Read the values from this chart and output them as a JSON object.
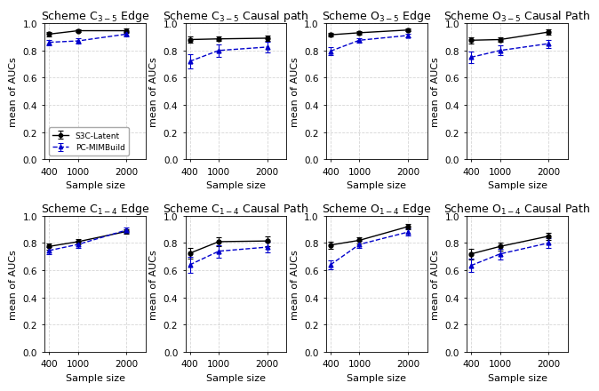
{
  "x": [
    400,
    1000,
    2000
  ],
  "panels": [
    {
      "title": "Scheme C$_{3-5}$ Edge",
      "s3c_mean": [
        0.92,
        0.945,
        0.945
      ],
      "s3c_err": [
        0.015,
        0.01,
        0.015
      ],
      "pc_mean": [
        0.86,
        0.87,
        0.92
      ],
      "pc_err": [
        0.02,
        0.018,
        0.018
      ],
      "show_legend": true
    },
    {
      "title": "Scheme C$_{3-5}$ Causal path",
      "s3c_mean": [
        0.88,
        0.885,
        0.89
      ],
      "s3c_err": [
        0.022,
        0.015,
        0.018
      ],
      "pc_mean": [
        0.72,
        0.8,
        0.825
      ],
      "pc_err": [
        0.055,
        0.045,
        0.038
      ],
      "show_legend": false
    },
    {
      "title": "Scheme O$_{3-5}$ Edge",
      "s3c_mean": [
        0.915,
        0.93,
        0.95
      ],
      "s3c_err": [
        0.015,
        0.012,
        0.01
      ],
      "pc_mean": [
        0.795,
        0.875,
        0.91
      ],
      "pc_err": [
        0.03,
        0.018,
        0.015
      ],
      "show_legend": false
    },
    {
      "title": "Scheme O$_{3-5}$ Causal Path",
      "s3c_mean": [
        0.875,
        0.88,
        0.935
      ],
      "s3c_err": [
        0.022,
        0.015,
        0.018
      ],
      "pc_mean": [
        0.75,
        0.8,
        0.85
      ],
      "pc_err": [
        0.04,
        0.035,
        0.03
      ],
      "show_legend": false
    },
    {
      "title": "Scheme C$_{1-4}$ Edge",
      "s3c_mean": [
        0.775,
        0.81,
        0.885
      ],
      "s3c_err": [
        0.022,
        0.02,
        0.018
      ],
      "pc_mean": [
        0.745,
        0.79,
        0.895
      ],
      "pc_err": [
        0.028,
        0.025,
        0.022
      ],
      "show_legend": false
    },
    {
      "title": "Scheme C$_{1-4}$ Causal Path",
      "s3c_mean": [
        0.725,
        0.81,
        0.815
      ],
      "s3c_err": [
        0.04,
        0.03,
        0.035
      ],
      "pc_mean": [
        0.64,
        0.74,
        0.77
      ],
      "pc_err": [
        0.06,
        0.045,
        0.04
      ],
      "show_legend": false
    },
    {
      "title": "Scheme O$_{1-4}$ Edge",
      "s3c_mean": [
        0.785,
        0.82,
        0.92
      ],
      "s3c_err": [
        0.025,
        0.022,
        0.018
      ],
      "pc_mean": [
        0.64,
        0.79,
        0.88
      ],
      "pc_err": [
        0.035,
        0.028,
        0.025
      ],
      "show_legend": false
    },
    {
      "title": "Scheme O$_{1-4}$ Causal Path",
      "s3c_mean": [
        0.72,
        0.775,
        0.85
      ],
      "s3c_err": [
        0.04,
        0.03,
        0.025
      ],
      "pc_mean": [
        0.635,
        0.72,
        0.8
      ],
      "pc_err": [
        0.05,
        0.04,
        0.035
      ],
      "show_legend": false
    }
  ],
  "s3c_color": "#000000",
  "pc_color": "#0000cc",
  "s3c_label": "S3C-Latent",
  "pc_label": "PC-MIMBuild",
  "xlabel": "Sample size",
  "ylabel": "mean of AUCs",
  "ylim": [
    0.0,
    1.0
  ],
  "yticks": [
    0.0,
    0.2,
    0.4,
    0.6,
    0.8,
    1.0
  ],
  "xticks": [
    400,
    1000,
    2000
  ],
  "plot_bg": "#ffffff",
  "fig_bg": "#ffffff",
  "grid_color": "#cccccc",
  "title_fontsize": 9,
  "label_fontsize": 8,
  "tick_fontsize": 7.5
}
